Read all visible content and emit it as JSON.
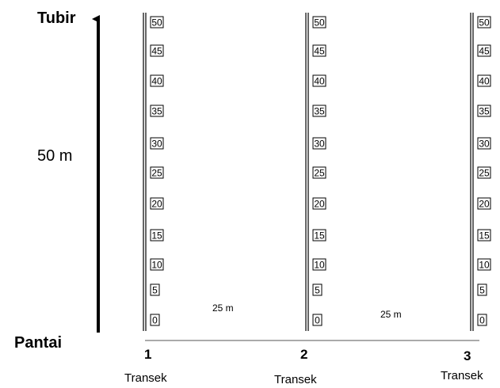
{
  "labels": {
    "top": "Tubir",
    "bottom": "Pantai",
    "length": "50 m",
    "spacing": "25 m"
  },
  "plot_markers": [
    "0",
    "5",
    "10",
    "15",
    "20",
    "25",
    "30",
    "35",
    "40",
    "45",
    "50"
  ],
  "transects": [
    {
      "number": "1",
      "label": "Transek"
    },
    {
      "number": "2",
      "label": "Transek"
    },
    {
      "number": "3",
      "label": "Transek"
    }
  ]
}
